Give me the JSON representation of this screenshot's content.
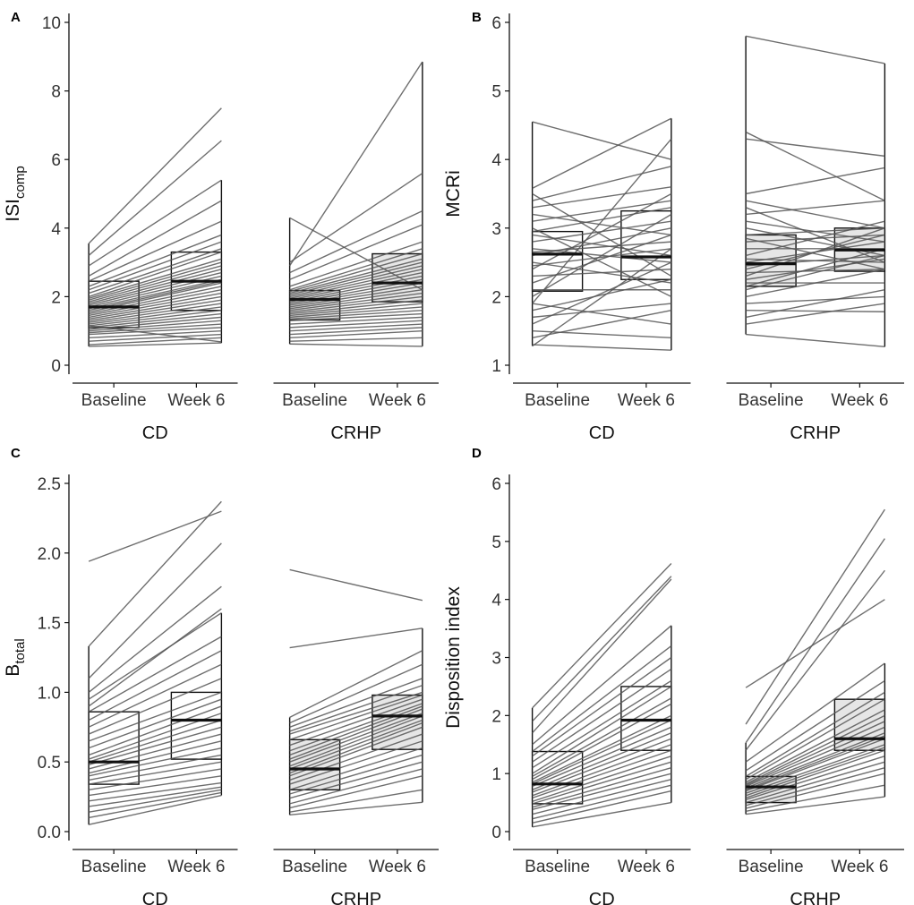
{
  "figure": {
    "x_tick_labels": [
      "Baseline",
      "Week 6"
    ],
    "groups": [
      "CD",
      "CRHP"
    ],
    "colors": {
      "cd_fill": "#ffffff",
      "crhp_fill": "#e6e6e6",
      "line": "#555555",
      "box": "#111111",
      "axis": "#111111"
    }
  },
  "chart_data": [
    {
      "type": "box",
      "panel": "A",
      "ylabel_main": "ISI",
      "ylabel_sub": "comp",
      "ylim": [
        0,
        10
      ],
      "yticks": [
        0,
        2,
        4,
        6,
        8,
        10
      ],
      "groups": [
        "CD",
        "CRHP"
      ],
      "categories": [
        "Baseline",
        "Week 6"
      ],
      "boxes": {
        "CD": {
          "Baseline": {
            "min": 0.55,
            "q1": 1.1,
            "median": 1.7,
            "q3": 2.45,
            "max": 3.55
          },
          "Week 6": {
            "min": 0.65,
            "q1": 1.6,
            "median": 2.45,
            "q3": 3.3,
            "max": 5.4
          }
        },
        "CRHP": {
          "Baseline": {
            "min": 0.62,
            "q1": 1.32,
            "median": 1.92,
            "q3": 2.18,
            "max": 4.3
          },
          "Week 6": {
            "min": 0.55,
            "q1": 1.85,
            "median": 2.4,
            "q3": 3.25,
            "max": 8.85
          }
        }
      },
      "paired_lines": {
        "CD": [
          [
            3.55,
            7.5
          ],
          [
            3.2,
            6.55
          ],
          [
            2.9,
            5.4
          ],
          [
            2.6,
            4.8
          ],
          [
            2.45,
            4.2
          ],
          [
            2.3,
            3.8
          ],
          [
            2.2,
            3.6
          ],
          [
            2.1,
            3.4
          ],
          [
            2.0,
            3.3
          ],
          [
            1.95,
            3.1
          ],
          [
            1.9,
            3.0
          ],
          [
            1.85,
            2.9
          ],
          [
            1.8,
            2.8
          ],
          [
            1.75,
            2.7
          ],
          [
            1.7,
            2.6
          ],
          [
            1.65,
            2.5
          ],
          [
            1.6,
            2.45
          ],
          [
            1.55,
            2.4
          ],
          [
            1.5,
            2.3
          ],
          [
            1.45,
            2.2
          ],
          [
            1.4,
            2.1
          ],
          [
            1.35,
            2.0
          ],
          [
            1.3,
            1.9
          ],
          [
            1.25,
            1.8
          ],
          [
            1.2,
            1.7
          ],
          [
            1.15,
            1.6
          ],
          [
            1.1,
            1.5
          ],
          [
            1.05,
            1.4
          ],
          [
            1.0,
            1.3
          ],
          [
            0.95,
            1.2
          ],
          [
            0.9,
            1.1
          ],
          [
            0.8,
            1.0
          ],
          [
            0.7,
            0.9
          ],
          [
            0.6,
            0.8
          ],
          [
            0.55,
            0.65
          ],
          [
            1.15,
            0.68
          ]
        ],
        "CRHP": [
          [
            4.3,
            2.2
          ],
          [
            2.9,
            8.85
          ],
          [
            3.0,
            5.6
          ],
          [
            2.7,
            4.5
          ],
          [
            2.5,
            4.1
          ],
          [
            2.3,
            3.6
          ],
          [
            2.2,
            3.4
          ],
          [
            2.15,
            3.25
          ],
          [
            2.1,
            3.1
          ],
          [
            2.05,
            3.0
          ],
          [
            2.0,
            2.9
          ],
          [
            1.95,
            2.8
          ],
          [
            1.9,
            2.7
          ],
          [
            1.85,
            2.6
          ],
          [
            1.8,
            2.5
          ],
          [
            1.75,
            2.4
          ],
          [
            1.7,
            2.3
          ],
          [
            1.65,
            2.2
          ],
          [
            1.6,
            2.1
          ],
          [
            1.55,
            2.0
          ],
          [
            1.5,
            1.9
          ],
          [
            1.45,
            1.8
          ],
          [
            1.4,
            1.7
          ],
          [
            1.35,
            1.6
          ],
          [
            1.3,
            1.5
          ],
          [
            1.2,
            1.4
          ],
          [
            1.1,
            1.3
          ],
          [
            1.0,
            1.2
          ],
          [
            0.9,
            1.1
          ],
          [
            0.8,
            1.0
          ],
          [
            0.7,
            0.8
          ],
          [
            0.62,
            0.55
          ]
        ]
      }
    },
    {
      "type": "box",
      "panel": "B",
      "ylabel_main": "MCRi",
      "ylabel_sub": "",
      "ylim": [
        1,
        6
      ],
      "yticks": [
        1,
        2,
        3,
        4,
        5,
        6
      ],
      "groups": [
        "CD",
        "CRHP"
      ],
      "categories": [
        "Baseline",
        "Week 6"
      ],
      "boxes": {
        "CD": {
          "Baseline": {
            "min": 1.28,
            "q1": 2.08,
            "median": 2.62,
            "q3": 2.95,
            "max": 4.55
          },
          "Week 6": {
            "min": 1.22,
            "q1": 2.25,
            "median": 2.58,
            "q3": 3.25,
            "max": 4.6
          }
        },
        "CRHP": {
          "Baseline": {
            "min": 1.45,
            "q1": 2.15,
            "median": 2.48,
            "q3": 2.9,
            "max": 5.8
          },
          "Week 6": {
            "min": 1.27,
            "q1": 2.37,
            "median": 2.68,
            "q3": 3.0,
            "max": 5.4
          }
        }
      },
      "paired_lines": {
        "CD": [
          [
            4.55,
            4.0
          ],
          [
            3.58,
            4.6
          ],
          [
            3.5,
            2.3
          ],
          [
            3.4,
            3.9
          ],
          [
            3.3,
            3.6
          ],
          [
            3.2,
            2.9
          ],
          [
            3.1,
            3.4
          ],
          [
            3.0,
            2.0
          ],
          [
            2.95,
            3.3
          ],
          [
            2.9,
            2.6
          ],
          [
            2.8,
            3.1
          ],
          [
            2.7,
            2.5
          ],
          [
            2.65,
            2.8
          ],
          [
            2.6,
            3.0
          ],
          [
            2.5,
            2.2
          ],
          [
            2.45,
            2.7
          ],
          [
            2.4,
            3.5
          ],
          [
            2.3,
            2.4
          ],
          [
            2.2,
            2.9
          ],
          [
            2.1,
            2.1
          ],
          [
            2.0,
            3.2
          ],
          [
            1.9,
            1.6
          ],
          [
            1.8,
            2.25
          ],
          [
            1.7,
            1.9
          ],
          [
            1.6,
            2.5
          ],
          [
            1.5,
            1.4
          ],
          [
            1.4,
            1.8
          ],
          [
            1.3,
            1.22
          ],
          [
            1.28,
            2.7
          ],
          [
            1.9,
            4.3
          ]
        ],
        "CRHP": [
          [
            5.8,
            5.4
          ],
          [
            4.4,
            3.4
          ],
          [
            4.3,
            4.05
          ],
          [
            3.5,
            3.88
          ],
          [
            3.4,
            3.0
          ],
          [
            3.3,
            2.5
          ],
          [
            3.2,
            3.4
          ],
          [
            3.1,
            2.8
          ],
          [
            3.0,
            2.6
          ],
          [
            2.9,
            3.0
          ],
          [
            2.85,
            2.4
          ],
          [
            2.8,
            2.9
          ],
          [
            2.7,
            2.7
          ],
          [
            2.6,
            3.1
          ],
          [
            2.55,
            2.5
          ],
          [
            2.5,
            2.8
          ],
          [
            2.45,
            2.6
          ],
          [
            2.4,
            2.9
          ],
          [
            2.35,
            2.4
          ],
          [
            2.3,
            3.0
          ],
          [
            2.25,
            2.55
          ],
          [
            2.2,
            2.2
          ],
          [
            2.15,
            2.7
          ],
          [
            2.0,
            2.4
          ],
          [
            1.9,
            2.0
          ],
          [
            1.8,
            1.78
          ],
          [
            1.7,
            2.1
          ],
          [
            1.6,
            1.9
          ],
          [
            1.45,
            1.27
          ],
          [
            2.1,
            2.6
          ]
        ]
      }
    },
    {
      "type": "box",
      "panel": "C",
      "ylabel_main": "B",
      "ylabel_sub": "total",
      "ylim": [
        0,
        2.5
      ],
      "yticks": [
        0.0,
        0.5,
        1.0,
        1.5,
        2.0,
        2.5
      ],
      "ytick_labels": [
        "0.0",
        "0.5",
        "1.0",
        "1.5",
        "2.0",
        "2.5"
      ],
      "groups": [
        "CD",
        "CRHP"
      ],
      "categories": [
        "Baseline",
        "Week 6"
      ],
      "boxes": {
        "CD": {
          "Baseline": {
            "min": 0.05,
            "q1": 0.34,
            "median": 0.5,
            "q3": 0.86,
            "max": 1.33
          },
          "Week 6": {
            "min": 0.26,
            "q1": 0.52,
            "median": 0.8,
            "q3": 1.0,
            "max": 1.57
          }
        },
        "CRHP": {
          "Baseline": {
            "min": 0.12,
            "q1": 0.3,
            "median": 0.45,
            "q3": 0.66,
            "max": 0.82
          },
          "Week 6": {
            "min": 0.21,
            "q1": 0.59,
            "median": 0.83,
            "q3": 0.98,
            "max": 1.46
          }
        }
      },
      "paired_lines": {
        "CD": [
          [
            1.94,
            2.3
          ],
          [
            1.33,
            2.37
          ],
          [
            1.1,
            2.07
          ],
          [
            0.95,
            1.57
          ],
          [
            0.86,
            1.4
          ],
          [
            0.8,
            1.3
          ],
          [
            0.75,
            1.2
          ],
          [
            0.7,
            1.1
          ],
          [
            0.65,
            1.0
          ],
          [
            0.6,
            0.95
          ],
          [
            0.55,
            0.9
          ],
          [
            0.52,
            0.85
          ],
          [
            0.5,
            0.8
          ],
          [
            0.48,
            0.75
          ],
          [
            0.45,
            0.7
          ],
          [
            0.42,
            0.65
          ],
          [
            0.4,
            0.6
          ],
          [
            0.37,
            0.55
          ],
          [
            0.34,
            0.5
          ],
          [
            0.3,
            0.45
          ],
          [
            0.26,
            0.4
          ],
          [
            0.22,
            0.35
          ],
          [
            0.18,
            0.32
          ],
          [
            0.14,
            0.3
          ],
          [
            0.1,
            0.28
          ],
          [
            0.05,
            0.26
          ],
          [
            1.0,
            1.76
          ],
          [
            0.9,
            1.6
          ]
        ],
        "CRHP": [
          [
            1.88,
            1.66
          ],
          [
            1.32,
            1.46
          ],
          [
            0.82,
            1.3
          ],
          [
            0.78,
            1.2
          ],
          [
            0.75,
            1.1
          ],
          [
            0.72,
            1.05
          ],
          [
            0.7,
            1.0
          ],
          [
            0.66,
            0.98
          ],
          [
            0.62,
            0.95
          ],
          [
            0.58,
            0.92
          ],
          [
            0.55,
            0.9
          ],
          [
            0.52,
            0.88
          ],
          [
            0.5,
            0.85
          ],
          [
            0.47,
            0.83
          ],
          [
            0.45,
            0.8
          ],
          [
            0.42,
            0.78
          ],
          [
            0.4,
            0.75
          ],
          [
            0.37,
            0.7
          ],
          [
            0.34,
            0.65
          ],
          [
            0.3,
            0.6
          ],
          [
            0.27,
            0.55
          ],
          [
            0.24,
            0.5
          ],
          [
            0.2,
            0.45
          ],
          [
            0.17,
            0.4
          ],
          [
            0.14,
            0.3
          ],
          [
            0.12,
            0.21
          ]
        ]
      }
    },
    {
      "type": "box",
      "panel": "D",
      "ylabel_main": "Disposition index",
      "ylabel_sub": "",
      "ylim": [
        0,
        6
      ],
      "yticks": [
        0,
        1,
        2,
        3,
        4,
        5,
        6
      ],
      "groups": [
        "CD",
        "CRHP"
      ],
      "categories": [
        "Baseline",
        "Week 6"
      ],
      "boxes": {
        "CD": {
          "Baseline": {
            "min": 0.08,
            "q1": 0.48,
            "median": 0.82,
            "q3": 1.38,
            "max": 2.13
          },
          "Week 6": {
            "min": 0.5,
            "q1": 1.4,
            "median": 1.92,
            "q3": 2.5,
            "max": 3.55
          }
        },
        "CRHP": {
          "Baseline": {
            "min": 0.3,
            "q1": 0.5,
            "median": 0.77,
            "q3": 0.95,
            "max": 1.53
          },
          "Week 6": {
            "min": 0.6,
            "q1": 1.4,
            "median": 1.6,
            "q3": 2.28,
            "max": 2.9
          }
        }
      },
      "paired_lines": {
        "CD": [
          [
            2.13,
            4.62
          ],
          [
            1.9,
            4.4
          ],
          [
            1.7,
            4.35
          ],
          [
            1.5,
            3.55
          ],
          [
            1.38,
            3.2
          ],
          [
            1.3,
            3.0
          ],
          [
            1.2,
            2.8
          ],
          [
            1.1,
            2.6
          ],
          [
            1.0,
            2.5
          ],
          [
            0.95,
            2.3
          ],
          [
            0.9,
            2.2
          ],
          [
            0.85,
            2.0
          ],
          [
            0.82,
            1.92
          ],
          [
            0.78,
            1.8
          ],
          [
            0.72,
            1.7
          ],
          [
            0.68,
            1.6
          ],
          [
            0.62,
            1.5
          ],
          [
            0.58,
            1.4
          ],
          [
            0.52,
            1.3
          ],
          [
            0.48,
            1.2
          ],
          [
            0.42,
            1.1
          ],
          [
            0.38,
            1.0
          ],
          [
            0.3,
            0.9
          ],
          [
            0.22,
            0.8
          ],
          [
            0.15,
            0.7
          ],
          [
            0.08,
            0.5
          ]
        ],
        "CRHP": [
          [
            2.48,
            4.0
          ],
          [
            1.85,
            5.55
          ],
          [
            1.53,
            5.05
          ],
          [
            1.4,
            4.5
          ],
          [
            1.2,
            2.9
          ],
          [
            1.05,
            2.6
          ],
          [
            0.95,
            2.4
          ],
          [
            0.9,
            2.28
          ],
          [
            0.85,
            2.1
          ],
          [
            0.82,
            2.0
          ],
          [
            0.8,
            1.9
          ],
          [
            0.78,
            1.8
          ],
          [
            0.75,
            1.7
          ],
          [
            0.72,
            1.65
          ],
          [
            0.7,
            1.6
          ],
          [
            0.66,
            1.5
          ],
          [
            0.62,
            1.45
          ],
          [
            0.58,
            1.4
          ],
          [
            0.55,
            1.3
          ],
          [
            0.5,
            1.2
          ],
          [
            0.45,
            1.1
          ],
          [
            0.4,
            1.0
          ],
          [
            0.35,
            0.8
          ],
          [
            0.3,
            0.6
          ]
        ]
      }
    }
  ]
}
